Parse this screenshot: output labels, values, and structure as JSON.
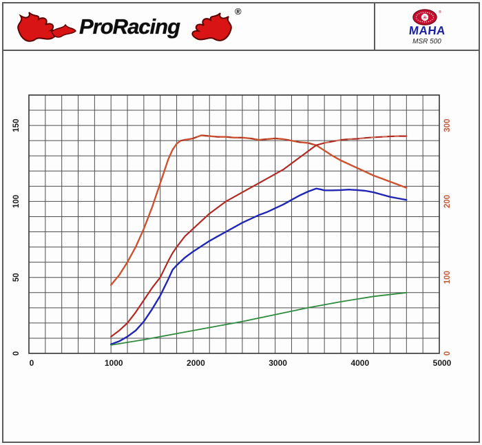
{
  "header": {
    "brand_name": "ProRacing",
    "registered_mark": "®",
    "device_brand": "MAHA",
    "device_model": "MSR 500"
  },
  "chart_data": {
    "type": "line",
    "title": "",
    "xlabel": "",
    "ylabel": "",
    "grid": true,
    "legend": "none",
    "x_axis": {
      "range": [
        0,
        5000
      ],
      "tick_values": [
        0,
        1000,
        2000,
        3000,
        4000,
        5000
      ],
      "tick_labels": [
        "0",
        "1000",
        "2000",
        "3000",
        "4000",
        "5000"
      ],
      "grid_step": 200,
      "label_color": "#1a1a1a"
    },
    "left_axis": {
      "range": [
        0,
        170
      ],
      "tick_values": [
        0,
        50,
        100,
        150
      ],
      "tick_labels": [
        "0",
        "50",
        "100",
        "150"
      ],
      "grid_step": 10,
      "label_color": "#1a1a1a"
    },
    "right_axis": {
      "range": [
        0,
        340
      ],
      "tick_values": [
        0,
        100,
        200,
        300
      ],
      "tick_labels": [
        "0",
        "100",
        "200",
        "300"
      ],
      "label_color": "#c45a36"
    },
    "grid_color": "#4d4d4d",
    "plot_border_color": "#333333",
    "series": [
      {
        "name": "orange-curve",
        "axis": "right",
        "color": "#cc5230",
        "width": 2.4,
        "dash_overlay": {
          "color": "#a83226",
          "from": 1850,
          "to": 3500
        },
        "points": [
          [
            1000,
            90
          ],
          [
            1100,
            103
          ],
          [
            1200,
            120
          ],
          [
            1300,
            140
          ],
          [
            1400,
            164
          ],
          [
            1500,
            192
          ],
          [
            1600,
            224
          ],
          [
            1700,
            256
          ],
          [
            1750,
            268
          ],
          [
            1800,
            276
          ],
          [
            1850,
            280
          ],
          [
            1900,
            281
          ],
          [
            2000,
            283
          ],
          [
            2100,
            287
          ],
          [
            2200,
            286
          ],
          [
            2300,
            285
          ],
          [
            2400,
            285
          ],
          [
            2500,
            284
          ],
          [
            2600,
            284
          ],
          [
            2700,
            283
          ],
          [
            2800,
            281
          ],
          [
            2900,
            282
          ],
          [
            3000,
            283
          ],
          [
            3100,
            282
          ],
          [
            3200,
            280
          ],
          [
            3300,
            278
          ],
          [
            3400,
            277
          ],
          [
            3500,
            274
          ],
          [
            3600,
            267
          ],
          [
            3700,
            260
          ],
          [
            3800,
            254
          ],
          [
            3900,
            249
          ],
          [
            4000,
            244
          ],
          [
            4100,
            239
          ],
          [
            4200,
            234
          ],
          [
            4300,
            230
          ],
          [
            4400,
            226
          ],
          [
            4500,
            222
          ],
          [
            4600,
            218
          ]
        ]
      },
      {
        "name": "red-curve",
        "axis": "left",
        "color": "#b02a23",
        "width": 2.2,
        "dash_overlay": {
          "color": "#d98a6a",
          "from": 3550,
          "to": 4600
        },
        "points": [
          [
            1000,
            11
          ],
          [
            1100,
            15
          ],
          [
            1200,
            20
          ],
          [
            1300,
            27
          ],
          [
            1400,
            35
          ],
          [
            1500,
            43
          ],
          [
            1600,
            50
          ],
          [
            1700,
            61
          ],
          [
            1750,
            66
          ],
          [
            1800,
            70
          ],
          [
            1900,
            77
          ],
          [
            2000,
            82
          ],
          [
            2100,
            87
          ],
          [
            2200,
            92
          ],
          [
            2300,
            96
          ],
          [
            2400,
            100
          ],
          [
            2500,
            103
          ],
          [
            2600,
            106
          ],
          [
            2700,
            109
          ],
          [
            2800,
            112
          ],
          [
            2900,
            115
          ],
          [
            3000,
            118
          ],
          [
            3100,
            121
          ],
          [
            3200,
            125
          ],
          [
            3300,
            129
          ],
          [
            3400,
            133
          ],
          [
            3500,
            137
          ],
          [
            3600,
            138.5
          ],
          [
            3700,
            139.5
          ],
          [
            3800,
            140.5
          ],
          [
            3900,
            141
          ],
          [
            4000,
            141.2
          ],
          [
            4100,
            141.8
          ],
          [
            4200,
            142.2
          ],
          [
            4300,
            142.5
          ],
          [
            4400,
            142.8
          ],
          [
            4500,
            143
          ],
          [
            4600,
            143
          ]
        ]
      },
      {
        "name": "blue-curve",
        "axis": "left",
        "color": "#2026b4",
        "width": 2.4,
        "points": [
          [
            1000,
            6
          ],
          [
            1100,
            8
          ],
          [
            1200,
            11
          ],
          [
            1300,
            15
          ],
          [
            1400,
            21
          ],
          [
            1500,
            29
          ],
          [
            1600,
            38
          ],
          [
            1700,
            49
          ],
          [
            1750,
            55
          ],
          [
            1800,
            58
          ],
          [
            1900,
            63
          ],
          [
            2000,
            67
          ],
          [
            2100,
            70.5
          ],
          [
            2200,
            74
          ],
          [
            2300,
            77
          ],
          [
            2400,
            80
          ],
          [
            2500,
            83
          ],
          [
            2600,
            86
          ],
          [
            2700,
            88.5
          ],
          [
            2800,
            91
          ],
          [
            2900,
            93
          ],
          [
            3000,
            95.5
          ],
          [
            3100,
            98
          ],
          [
            3200,
            101
          ],
          [
            3300,
            104
          ],
          [
            3400,
            106.5
          ],
          [
            3500,
            108.5
          ],
          [
            3550,
            108
          ],
          [
            3600,
            107.3
          ],
          [
            3700,
            107.3
          ],
          [
            3800,
            107.5
          ],
          [
            3900,
            107.8
          ],
          [
            4000,
            107.5
          ],
          [
            4100,
            107
          ],
          [
            4200,
            106
          ],
          [
            4300,
            104.5
          ],
          [
            4400,
            103
          ],
          [
            4500,
            102
          ],
          [
            4600,
            101
          ]
        ]
      },
      {
        "name": "green-curve",
        "axis": "left",
        "color": "#2e8b3c",
        "width": 1.8,
        "points": [
          [
            1000,
            5.5
          ],
          [
            1400,
            9
          ],
          [
            1800,
            13
          ],
          [
            2200,
            17
          ],
          [
            2600,
            21
          ],
          [
            3000,
            25.5
          ],
          [
            3400,
            30
          ],
          [
            3800,
            34
          ],
          [
            4200,
            37.5
          ],
          [
            4600,
            40
          ]
        ]
      }
    ]
  }
}
